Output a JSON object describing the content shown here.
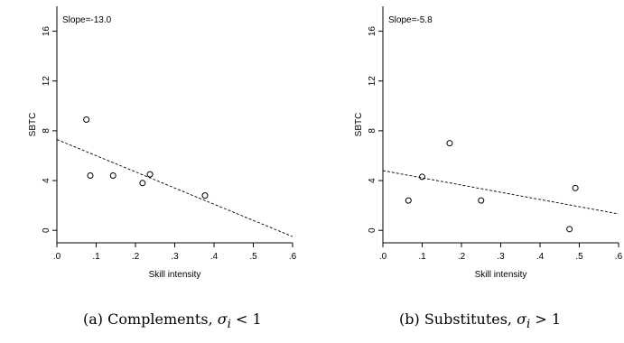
{
  "chart_data": [
    {
      "type": "scatter",
      "panel": "a",
      "annotation": "Slope=-13.0",
      "xlabel": "Skill intensity",
      "ylabel": "SBTC",
      "xlim": [
        0,
        0.6
      ],
      "ylim": [
        -1,
        18
      ],
      "xticks": [
        0,
        0.1,
        0.2,
        0.3,
        0.4,
        0.5,
        0.6
      ],
      "xtick_labels": [
        ".0",
        ".1",
        ".2",
        ".3",
        ".4",
        ".5",
        ".6"
      ],
      "yticks": [
        0,
        4,
        8,
        12,
        16
      ],
      "ytick_labels": [
        "0",
        "4",
        "8",
        "12",
        "16"
      ],
      "points": [
        {
          "x": 0.075,
          "y": 8.9
        },
        {
          "x": 0.085,
          "y": 4.4
        },
        {
          "x": 0.143,
          "y": 4.4
        },
        {
          "x": 0.218,
          "y": 3.8
        },
        {
          "x": 0.237,
          "y": 4.5
        },
        {
          "x": 0.377,
          "y": 2.8
        }
      ],
      "fit_line": {
        "intercept": 7.3,
        "slope": -13.0
      },
      "grid": false
    },
    {
      "type": "scatter",
      "panel": "b",
      "annotation": "Slope=-5.8",
      "xlabel": "Skill intensity",
      "ylabel": "SBTC",
      "xlim": [
        0,
        0.6
      ],
      "ylim": [
        -1,
        18
      ],
      "xticks": [
        0,
        0.1,
        0.2,
        0.3,
        0.4,
        0.5,
        0.6
      ],
      "xtick_labels": [
        ".0",
        ".1",
        ".2",
        ".3",
        ".4",
        ".5",
        ".6"
      ],
      "yticks": [
        0,
        4,
        8,
        12,
        16
      ],
      "ytick_labels": [
        "0",
        "4",
        "8",
        "12",
        "16"
      ],
      "points": [
        {
          "x": 0.065,
          "y": 2.4
        },
        {
          "x": 0.1,
          "y": 4.3
        },
        {
          "x": 0.17,
          "y": 7.0
        },
        {
          "x": 0.25,
          "y": 2.4
        },
        {
          "x": 0.475,
          "y": 0.1
        },
        {
          "x": 0.49,
          "y": 3.4
        }
      ],
      "fit_line": {
        "intercept": 4.8,
        "slope": -5.8
      },
      "grid": false
    }
  ],
  "captions": [
    {
      "prefix": "(a) Complements, ",
      "sigma": "σ",
      "sub": "i",
      "rel": " < 1"
    },
    {
      "prefix": "(b) Substitutes, ",
      "sigma": "σ",
      "sub": "i",
      "rel": " > 1"
    }
  ]
}
